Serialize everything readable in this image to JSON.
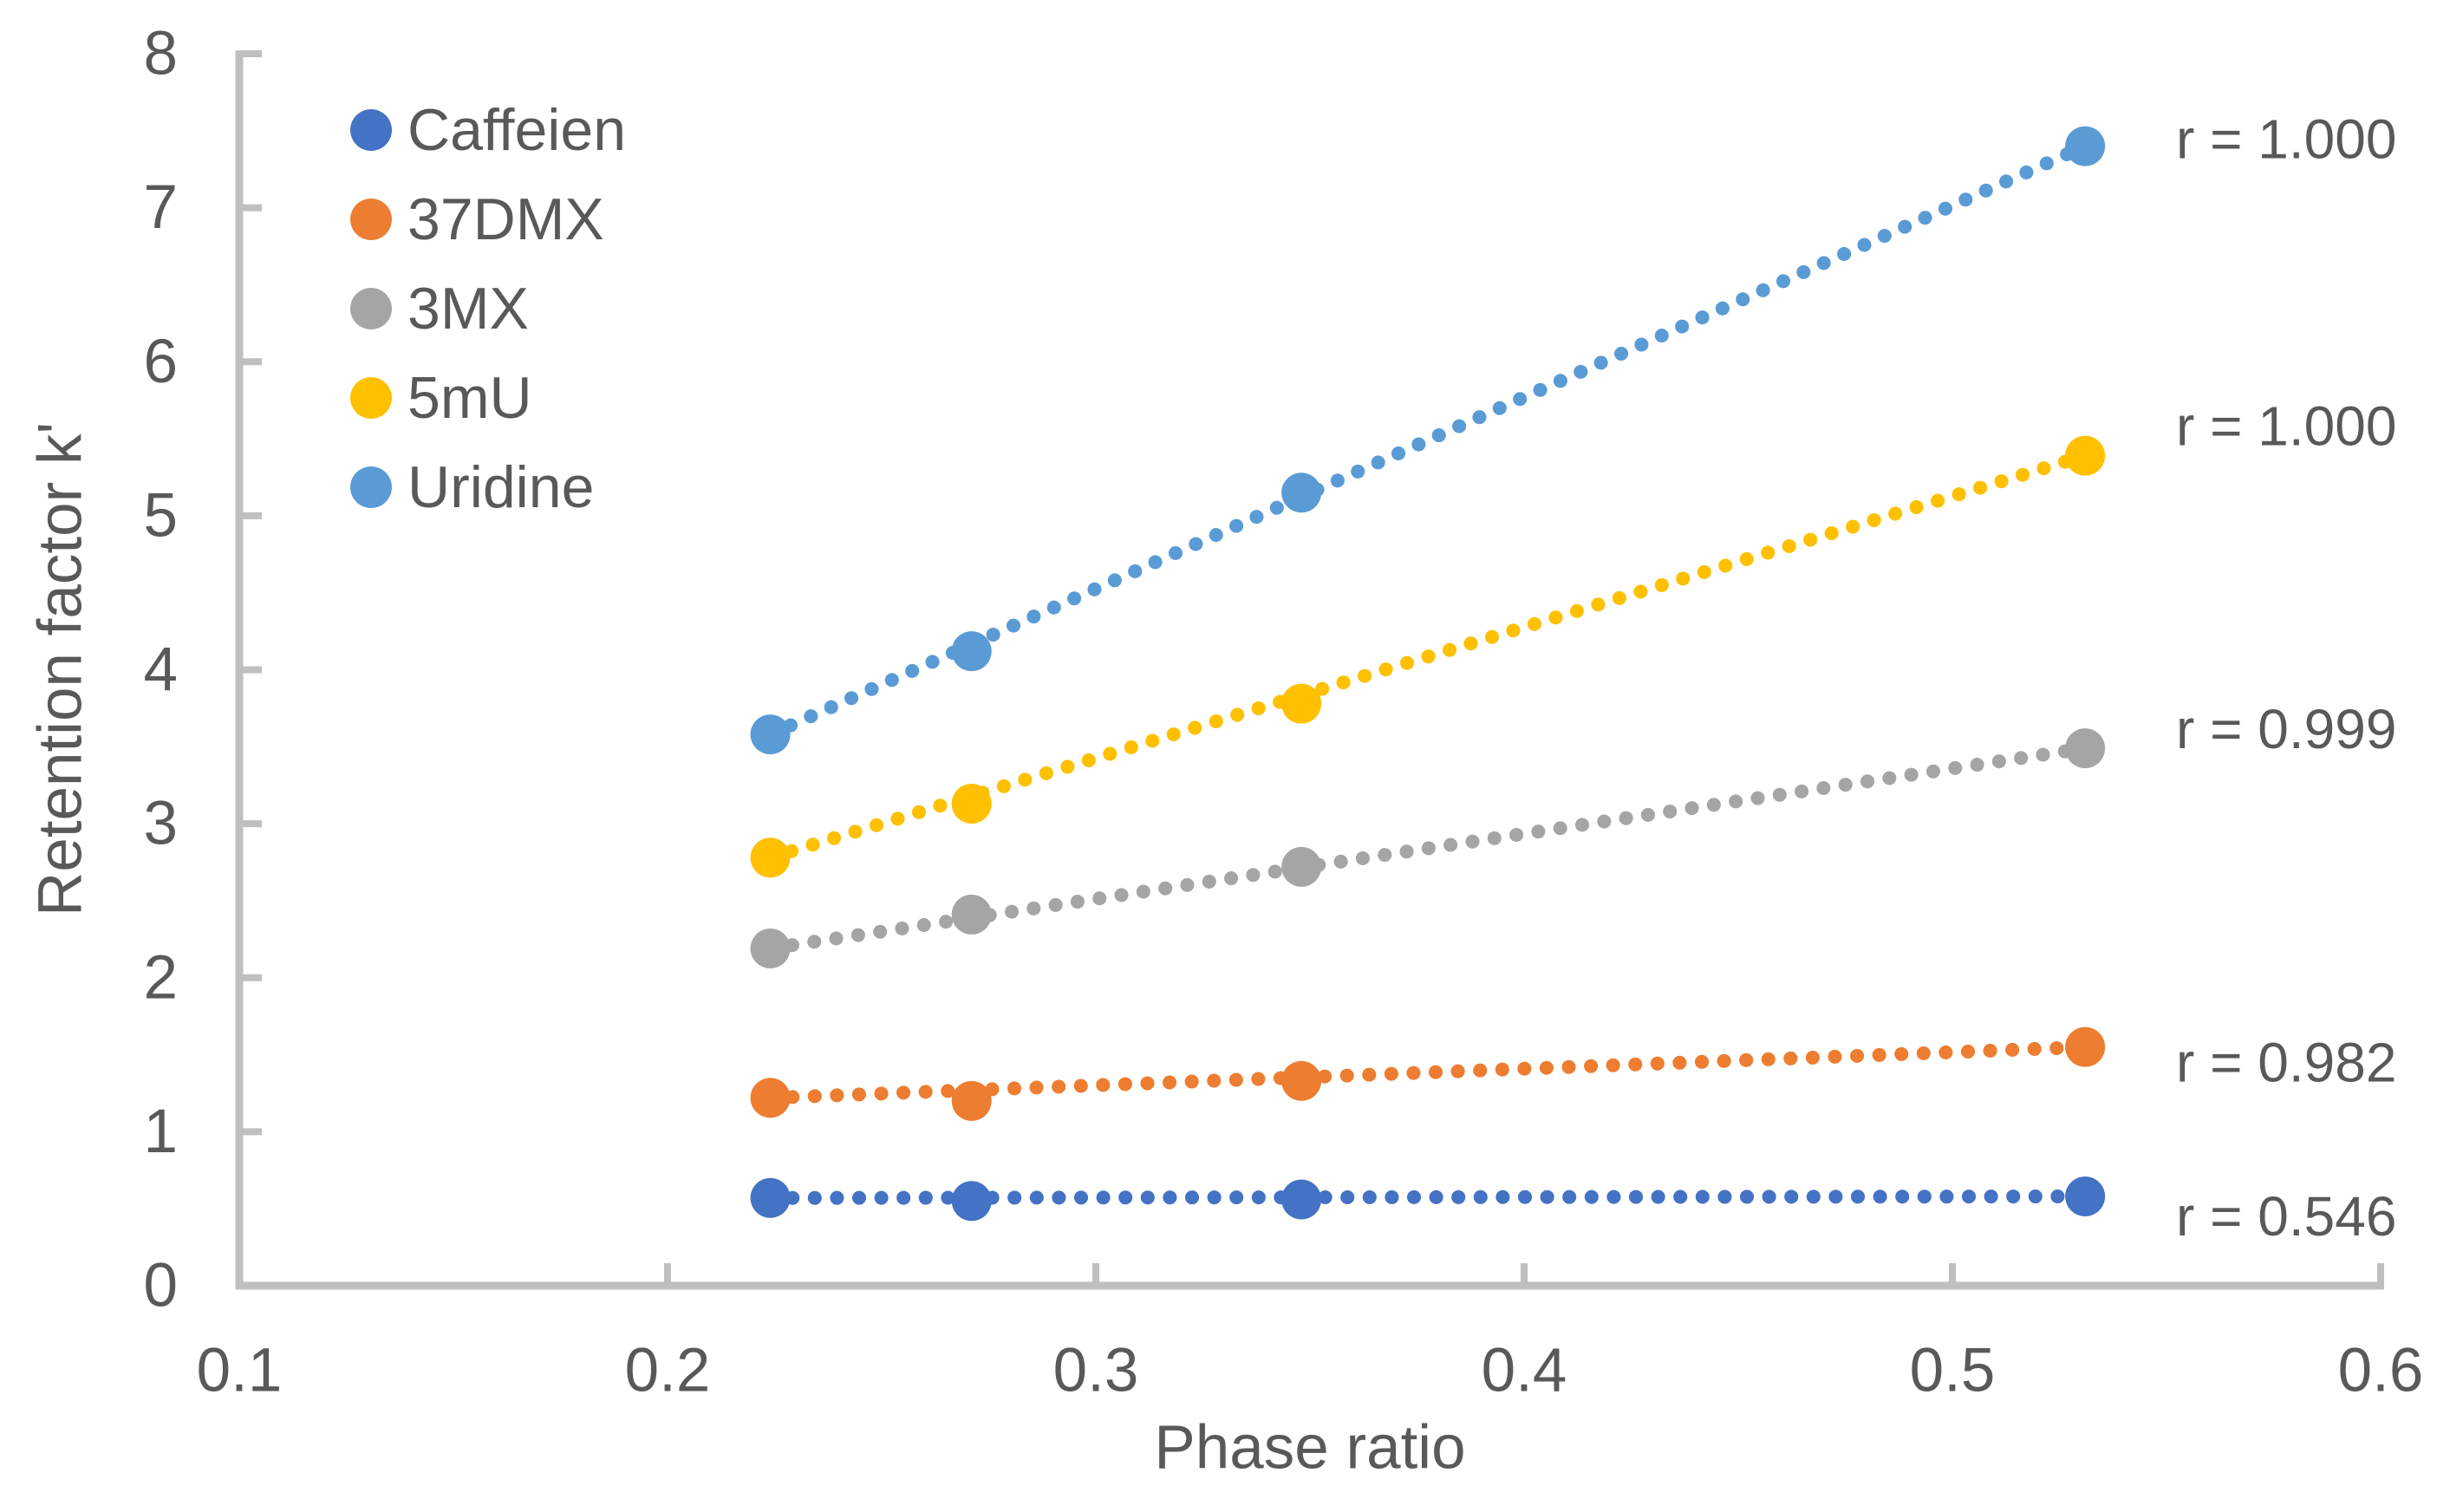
{
  "figure": {
    "background": "#ffffff",
    "text_color": "#595959",
    "axis_color": "#BFBFBF"
  },
  "chart_data": {
    "type": "scatter",
    "title": "",
    "xlabel": "Phase ratio",
    "ylabel": "Retention factor k'",
    "xlim": [
      0.1,
      0.6
    ],
    "ylim": [
      0,
      8
    ],
    "x_ticks": [
      "0.1",
      "0.2",
      "0.3",
      "0.4",
      "0.5",
      "0.6"
    ],
    "y_ticks": [
      "0",
      "1",
      "2",
      "3",
      "4",
      "5",
      "6",
      "7",
      "8"
    ],
    "grid": false,
    "legend_position": "upper-left-inside",
    "marker": "circle",
    "trendline_style": "dotted",
    "x": [
      0.224,
      0.271,
      0.348,
      0.531
    ],
    "series": [
      {
        "name": "Caffeien",
        "color": "#4472C4",
        "values": [
          0.57,
          0.55,
          0.56,
          0.58
        ],
        "r_label": "r = 0.546"
      },
      {
        "name": "37DMX",
        "color": "#ED7D31",
        "values": [
          1.22,
          1.2,
          1.33,
          1.55
        ],
        "r_label": "r = 0.982"
      },
      {
        "name": "3MX",
        "color": "#A5A5A5",
        "values": [
          2.19,
          2.41,
          2.72,
          3.49
        ],
        "r_label": "r = 0.999"
      },
      {
        "name": "5mU",
        "color": "#FFC000",
        "values": [
          2.78,
          3.13,
          3.78,
          5.39
        ],
        "r_label": "r = 1.000"
      },
      {
        "name": "Uridine",
        "color": "#5B9BD5",
        "values": [
          3.58,
          4.12,
          5.15,
          7.4
        ],
        "r_label": "r = 1.000"
      }
    ],
    "annotations_top_to_bottom": [
      "r = 1.000",
      "r = 1.000",
      "r = 0.999",
      "r = 0.982",
      "r = 0.546"
    ]
  }
}
